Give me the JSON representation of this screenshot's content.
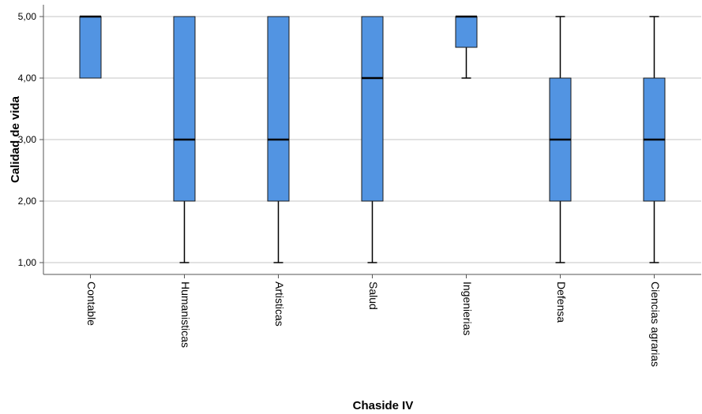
{
  "chart_data": {
    "type": "boxplot",
    "xlabel": "Chaside IV",
    "ylabel": "Calidad de vida",
    "ylim": [
      1,
      5
    ],
    "yticks": [
      "1,00",
      "2,00",
      "3,00",
      "4,00",
      "5,00"
    ],
    "grid": true,
    "categories": [
      "Contable",
      "Humanisticas",
      "Artisticas",
      "Salud",
      "Ingenierias",
      "Defensa",
      "Ciencias agrarias"
    ],
    "boxes": [
      {
        "category": "Contable",
        "min": 4,
        "q1": 4,
        "median": 5,
        "q3": 5,
        "max": 5
      },
      {
        "category": "Humanisticas",
        "min": 1,
        "q1": 2,
        "median": 3,
        "q3": 5,
        "max": 5
      },
      {
        "category": "Artisticas",
        "min": 1,
        "q1": 2,
        "median": 3,
        "q3": 5,
        "max": 5
      },
      {
        "category": "Salud",
        "min": 1,
        "q1": 2,
        "median": 4,
        "q3": 5,
        "max": 5
      },
      {
        "category": "Ingenierias",
        "min": 4,
        "q1": 4.5,
        "median": 5,
        "q3": 5,
        "max": 5
      },
      {
        "category": "Defensa",
        "min": 1,
        "q1": 2,
        "median": 3,
        "q3": 4,
        "max": 5
      },
      {
        "category": "Ciencias agrarias",
        "min": 1,
        "q1": 2,
        "median": 3,
        "q3": 4,
        "max": 5
      }
    ],
    "colors": {
      "box_fill": "#5294e2",
      "box_stroke": "#1a1a1a",
      "grid": "#c4c4c4",
      "axis": "#555555"
    }
  }
}
